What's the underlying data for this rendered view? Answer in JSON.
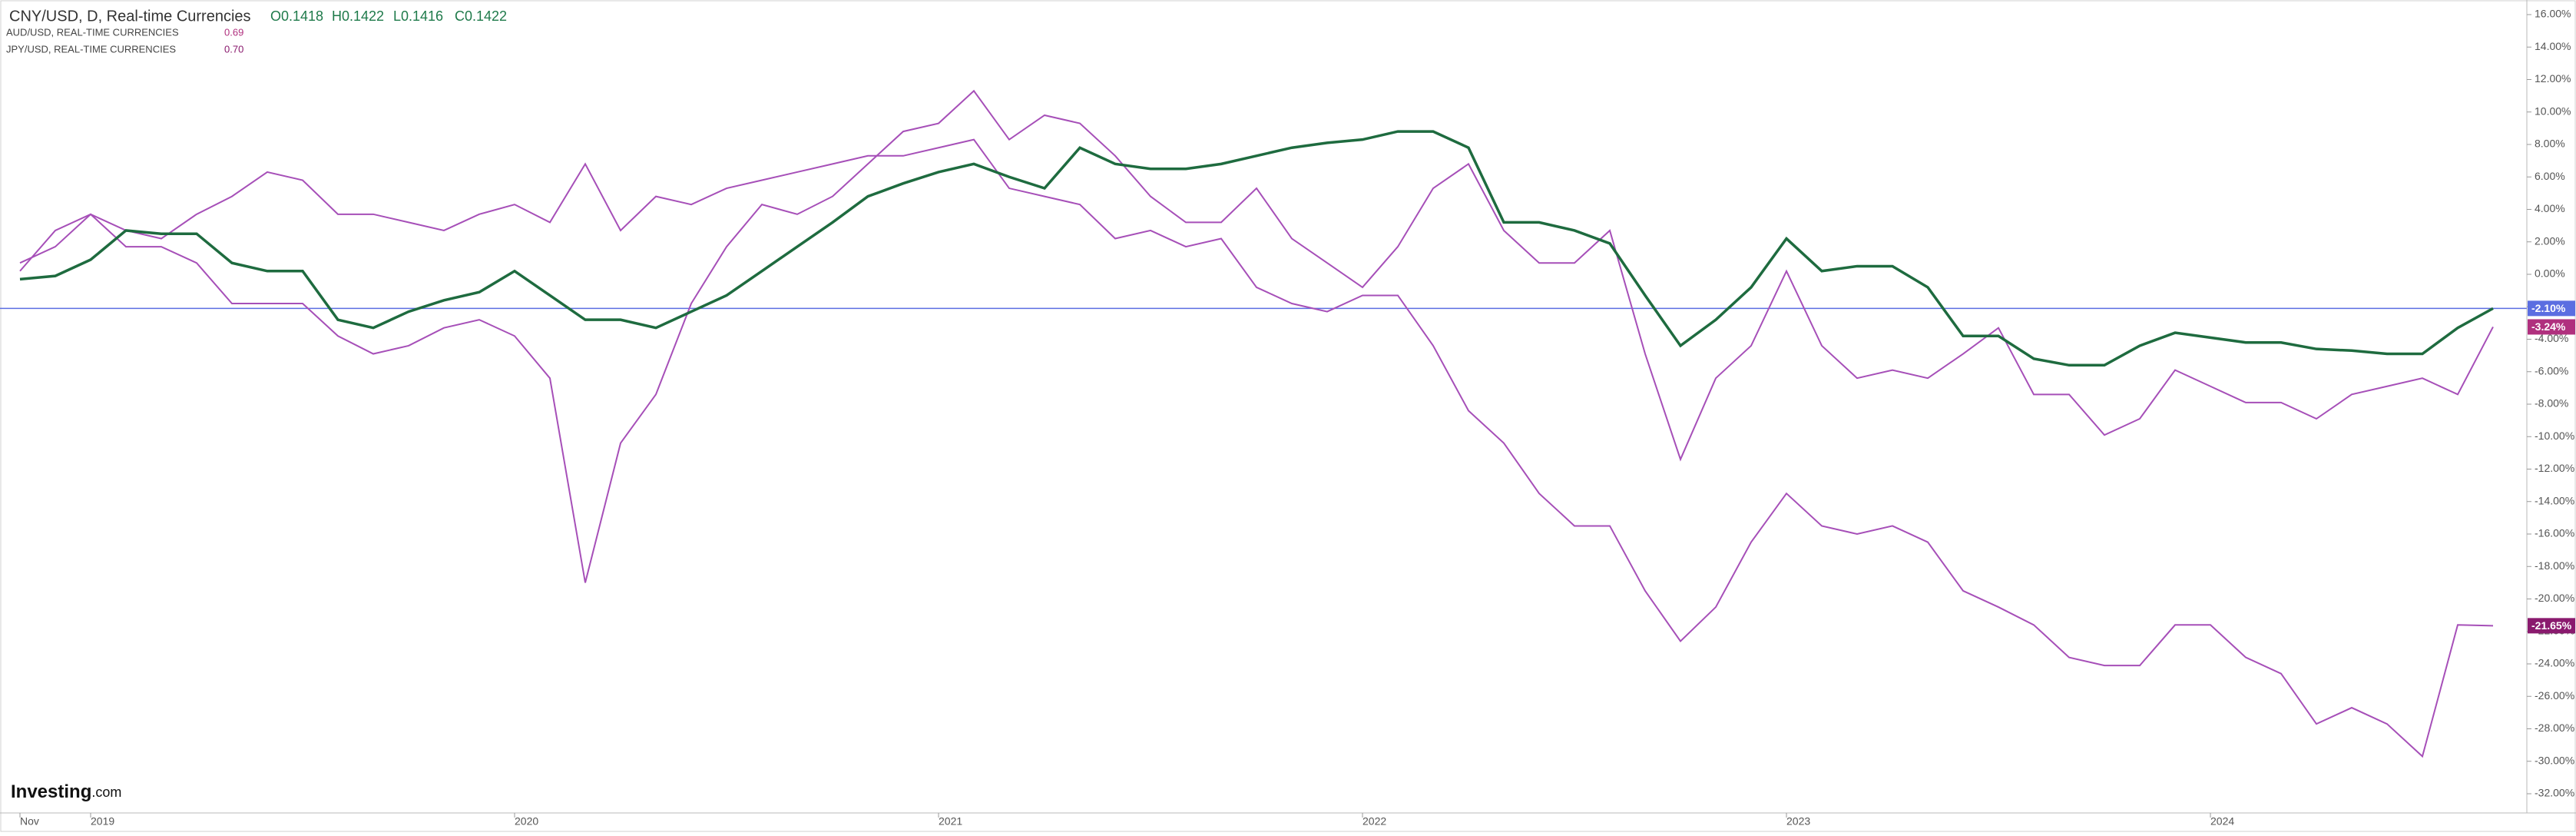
{
  "chart_data": {
    "type": "line",
    "title": "CNY/USD, D, Real-time Currencies",
    "ohlc": [
      "O0.1418",
      "H0.1422",
      "L0.1416",
      "C0.1422"
    ],
    "watermark": [
      "Investing",
      ".com"
    ],
    "categories": [
      "Nov",
      null,
      "2019",
      null,
      null,
      null,
      null,
      null,
      null,
      null,
      null,
      null,
      null,
      null,
      "2020",
      null,
      null,
      null,
      null,
      null,
      null,
      null,
      null,
      null,
      null,
      null,
      "2021",
      null,
      null,
      null,
      null,
      null,
      null,
      null,
      null,
      null,
      null,
      null,
      "2022",
      null,
      null,
      null,
      null,
      null,
      null,
      null,
      null,
      null,
      null,
      null,
      "2023",
      null,
      null,
      null,
      null,
      null,
      null,
      null,
      null,
      null,
      null,
      null,
      "2024",
      null,
      null,
      null,
      null,
      null,
      null,
      null,
      null
    ],
    "ylim": [
      -32,
      16
    ],
    "yticks": [
      {
        "value": 16,
        "label": "16.00%"
      },
      {
        "value": 14,
        "label": "14.00%"
      },
      {
        "value": 12,
        "label": "12.00%"
      },
      {
        "value": 10,
        "label": "10.00%"
      },
      {
        "value": 8,
        "label": "8.00%"
      },
      {
        "value": 6,
        "label": "6.00%"
      },
      {
        "value": 4,
        "label": "4.00%"
      },
      {
        "value": 2,
        "label": "2.00%"
      },
      {
        "value": 0,
        "label": "0.00%"
      },
      {
        "value": -2,
        "label": "-2.00%"
      },
      {
        "value": -4,
        "label": "-4.00%"
      },
      {
        "value": -6,
        "label": "-6.00%"
      },
      {
        "value": -8,
        "label": "-8.00%"
      },
      {
        "value": -10,
        "label": "-10.00%"
      },
      {
        "value": -12,
        "label": "-12.00%"
      },
      {
        "value": -14,
        "label": "-14.00%"
      },
      {
        "value": -16,
        "label": "-16.00%"
      },
      {
        "value": -18,
        "label": "-18.00%"
      },
      {
        "value": -20,
        "label": "-20.00%"
      },
      {
        "value": -22,
        "label": "-22.00%"
      },
      {
        "value": -24,
        "label": "-24.00%"
      },
      {
        "value": -26,
        "label": "-26.00%"
      },
      {
        "value": -28,
        "label": "-28.00%"
      },
      {
        "value": -30,
        "label": "-30.00%"
      },
      {
        "value": -32,
        "label": "-32.00%"
      }
    ],
    "series": [
      {
        "name": "CNY/USD, D, Real-time Currencies",
        "color": "#1e6b3f",
        "label_color": "#5b6ee1",
        "last_value": {
          "value": -2.1,
          "label": "-2.10%"
        },
        "values": [
          -0.3,
          -0.1,
          0.9,
          2.7,
          2.5,
          2.5,
          0.7,
          0.2,
          0.2,
          -2.8,
          -3.3,
          -2.3,
          -1.6,
          -1.1,
          0.2,
          -1.3,
          -2.8,
          -2.8,
          -3.3,
          -2.3,
          -1.3,
          0.2,
          1.7,
          3.2,
          4.8,
          5.6,
          6.3,
          6.8,
          6.0,
          5.3,
          7.8,
          6.8,
          6.5,
          6.5,
          6.8,
          7.3,
          7.8,
          8.1,
          8.3,
          8.8,
          8.8,
          7.8,
          3.2,
          3.2,
          2.7,
          1.9,
          -1.3,
          -4.4,
          -2.8,
          -0.8,
          2.2,
          0.2,
          0.5,
          0.5,
          -0.8,
          -3.8,
          -3.8,
          -5.2,
          -5.6,
          -5.6,
          -4.4,
          -3.6,
          -3.9,
          -4.2,
          -4.2,
          -4.6,
          -4.7,
          -4.9,
          -4.9,
          -3.3,
          -2.1
        ]
      },
      {
        "name": "AUD/USD, REAL-TIME CURRENCIES",
        "color": "#a64fb8",
        "label_color": "#b0307e",
        "price": {
          "value": 0.69,
          "label": "0.69"
        },
        "last_value": {
          "value": -3.24,
          "label": "-3.24%"
        },
        "values": [
          0.7,
          1.7,
          3.7,
          1.7,
          1.7,
          0.7,
          -1.8,
          -1.8,
          -1.8,
          -3.8,
          -4.9,
          -4.4,
          -3.3,
          -2.8,
          -3.8,
          -6.4,
          -19.0,
          -10.4,
          -7.4,
          -1.8,
          1.7,
          4.3,
          3.7,
          4.8,
          6.8,
          8.8,
          9.3,
          11.3,
          8.3,
          9.8,
          9.3,
          7.3,
          4.8,
          3.2,
          3.2,
          5.3,
          2.2,
          0.7,
          -0.8,
          1.7,
          5.3,
          6.8,
          2.7,
          0.7,
          0.7,
          2.7,
          -4.9,
          -11.4,
          -6.4,
          -4.4,
          0.2,
          -4.4,
          -6.4,
          -5.9,
          -6.4,
          -4.9,
          -3.3,
          -7.4,
          -7.4,
          -9.9,
          -8.9,
          -5.9,
          -6.9,
          -7.9,
          -7.9,
          -8.9,
          -7.4,
          -6.9,
          -6.4,
          -7.4,
          -3.24
        ]
      },
      {
        "name": "JPY/USD, REAL-TIME CURRENCIES",
        "color": "#a64fb8",
        "label_color": "#8a1a6e",
        "price": {
          "value": 0.7,
          "label": "0.70"
        },
        "last_value": {
          "value": -21.65,
          "label": "-21.65%"
        },
        "values": [
          0.2,
          2.7,
          3.7,
          2.7,
          2.2,
          3.7,
          4.8,
          6.3,
          5.8,
          3.7,
          3.7,
          3.2,
          2.7,
          3.7,
          4.3,
          3.2,
          6.8,
          2.7,
          4.8,
          4.3,
          5.3,
          5.8,
          6.3,
          6.8,
          7.3,
          7.3,
          7.8,
          8.3,
          5.3,
          4.8,
          4.3,
          2.2,
          2.7,
          1.7,
          2.2,
          -0.8,
          -1.8,
          -2.3,
          -1.3,
          -1.3,
          -4.4,
          -8.4,
          -10.4,
          -13.5,
          -15.5,
          -15.5,
          -19.5,
          -22.6,
          -20.5,
          -16.5,
          -13.5,
          -15.5,
          -16.0,
          -15.5,
          -16.5,
          -19.5,
          -20.5,
          -21.6,
          -23.6,
          -24.1,
          -24.1,
          -21.6,
          -21.6,
          -23.6,
          -24.6,
          -27.7,
          -26.7,
          -27.7,
          -29.7,
          -21.6,
          -21.65
        ]
      }
    ]
  }
}
